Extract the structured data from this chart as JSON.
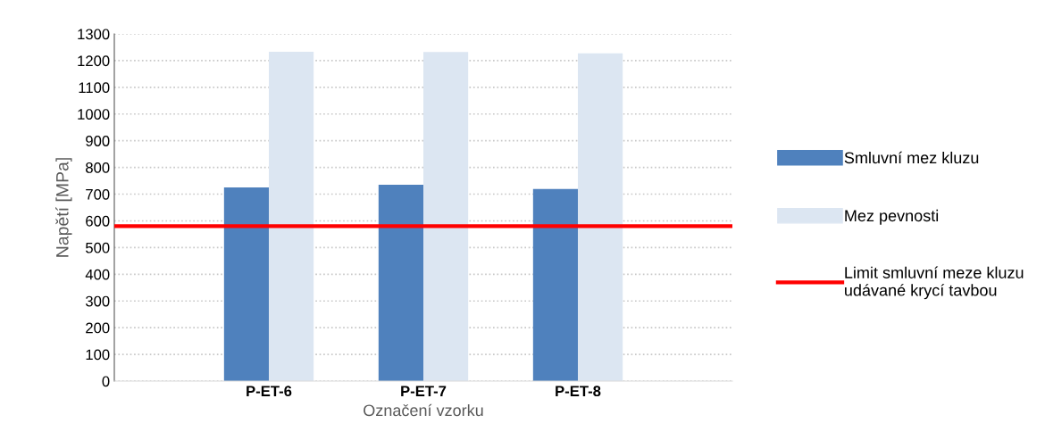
{
  "chart_data": {
    "type": "bar",
    "xlabel": "Označení vzorku",
    "ylabel": "Napětí [MPa]",
    "categories": [
      null,
      "P-ET-6",
      "P-ET-7",
      "P-ET-8",
      null
    ],
    "series": [
      {
        "name": "Smluvní mez kluzu",
        "color": "#4f81bd",
        "values": [
          null,
          725,
          735,
          719,
          null
        ]
      },
      {
        "name": "Mez pevnosti",
        "color": "#dce6f2",
        "values": [
          null,
          1233,
          1232,
          1227,
          null
        ]
      }
    ],
    "ref_lines": [
      {
        "axis": "y",
        "value": 580,
        "label": "Limit smluvní meze kluzu\nudávané krycí tavbou",
        "color": "#ff0000"
      }
    ],
    "ylim": [
      0,
      1300
    ],
    "yticks": [
      0,
      100,
      200,
      300,
      400,
      500,
      600,
      700,
      800,
      900,
      1000,
      1100,
      1200,
      1300
    ],
    "grid": "y",
    "legend": "right"
  }
}
